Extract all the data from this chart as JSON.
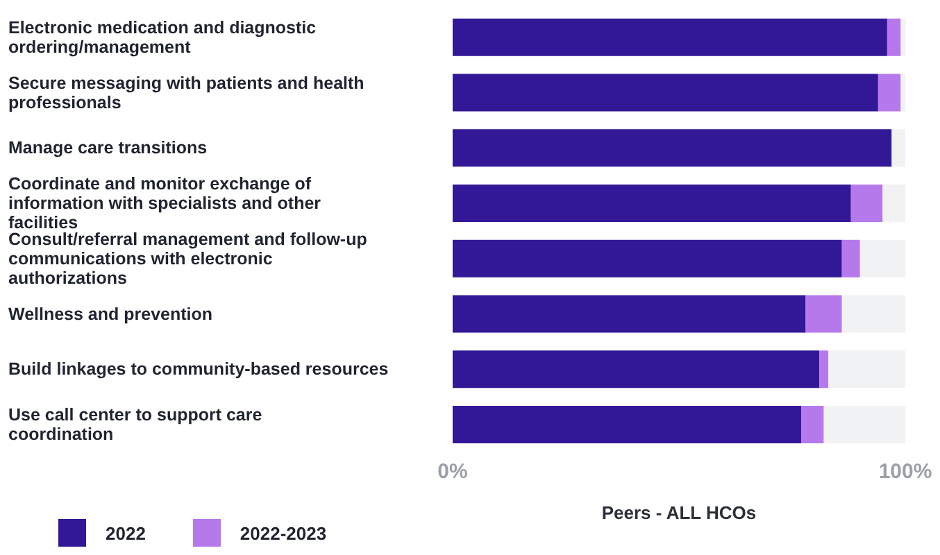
{
  "chart_data": {
    "type": "bar",
    "orientation": "horizontal",
    "stacked": true,
    "categories": [
      "Electronic medication and diagnostic ordering/management",
      "Secure messaging with patients and health professionals",
      "Manage care transitions",
      "Coordinate and monitor exchange of information with specialists and other facilities",
      "Consult/referral management and follow-up communications with electronic authorizations",
      "Wellness and prevention",
      "Build linkages to community-based resources",
      "Use call center to support care coordination"
    ],
    "series": [
      {
        "name": "2022",
        "color": "#321896",
        "values": [
          96,
          94,
          97,
          88,
          86,
          78,
          81,
          77
        ]
      },
      {
        "name": "2022-2023",
        "color": "#b679ec",
        "values": [
          3,
          5,
          0,
          7,
          4,
          8,
          2,
          5
        ]
      },
      {
        "color": "#f1f2f4",
        "values": [
          1,
          1,
          3,
          5,
          10,
          14,
          17,
          18
        ]
      }
    ],
    "xlim": [
      0,
      100
    ],
    "xticks": [
      {
        "value": 0,
        "label": "0%"
      },
      {
        "value": 100,
        "label": "100%"
      }
    ],
    "xlabel": "Peers - ALL HCOs",
    "legend": "bottom left",
    "grid": false
  }
}
